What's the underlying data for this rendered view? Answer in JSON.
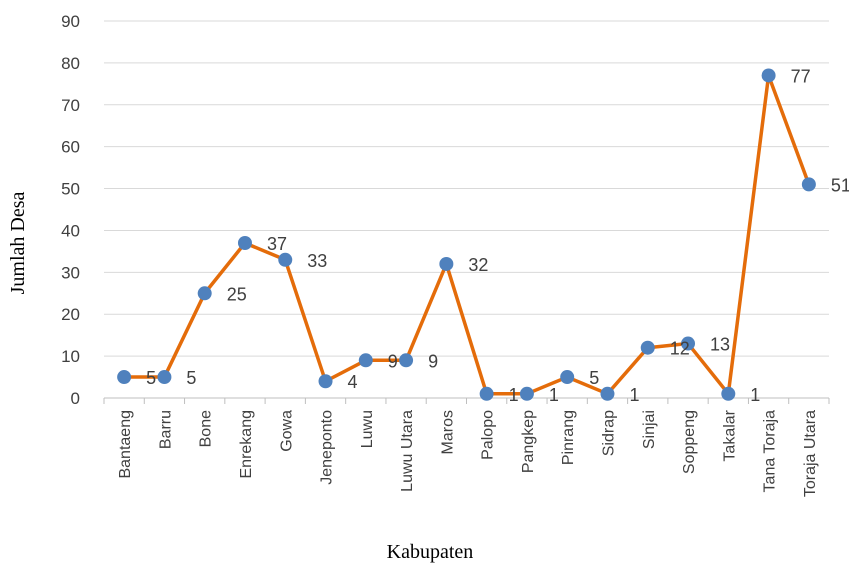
{
  "chart_data": {
    "type": "line",
    "title": "",
    "xlabel": "Kabupaten",
    "ylabel": "Jumlah Desa",
    "ylim": [
      0,
      90
    ],
    "ytick_step": 10,
    "grid": true,
    "legend": "none",
    "categories": [
      "Bantaeng",
      "Barru",
      "Bone",
      "Enrekang",
      "Gowa",
      "Jeneponto",
      "Luwu",
      "Luwu Utara",
      "Maros",
      "Palopo",
      "Pangkep",
      "Pinrang",
      "Sidrap",
      "Sinjai",
      "Soppeng",
      "Takalar",
      "Tana Toraja",
      "Toraja Utara"
    ],
    "series": [
      {
        "values": [
          5,
          5,
          25,
          37,
          33,
          4,
          9,
          9,
          32,
          1,
          1,
          5,
          1,
          12,
          13,
          1,
          77,
          51
        ],
        "color": "#E46C0A",
        "marker_color": "#4F81BD"
      }
    ],
    "colors": {
      "gridline": "#D9D9D9",
      "axis": "#BFBFBF",
      "text": "#404040"
    }
  }
}
